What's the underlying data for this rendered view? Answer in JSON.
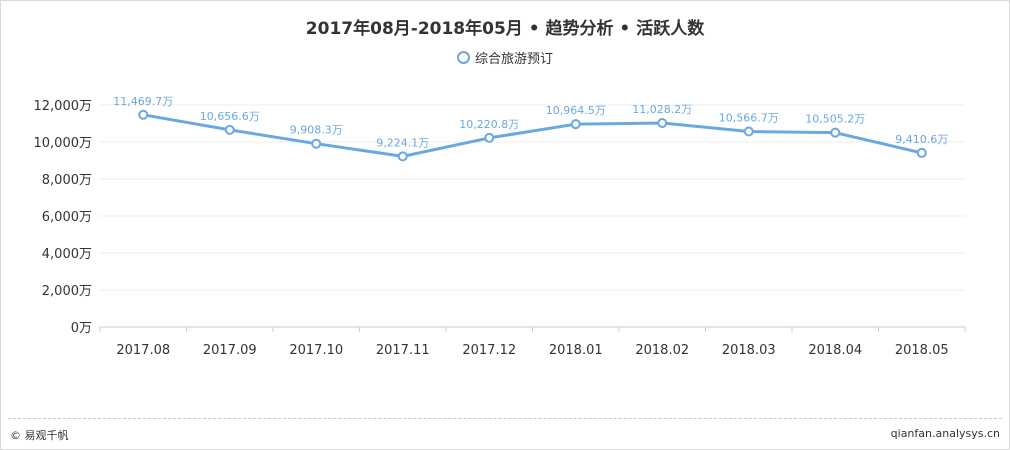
{
  "title": "2017年08月-2018年05月 • 趋势分析 • 活跃人数",
  "footer": {
    "left": "© 易观千帆",
    "right": "qianfan.analysys.cn"
  },
  "colors": {
    "series": "#6aa8e0",
    "label": "#6aa8e0",
    "axis_text": "#333333",
    "grid": "#eeeeee"
  },
  "chart_data": {
    "type": "line",
    "title": "2017年08月-2018年05月 • 趋势分析 • 活跃人数",
    "categories": [
      "2017.08",
      "2017.09",
      "2017.10",
      "2017.11",
      "2017.12",
      "2018.01",
      "2018.02",
      "2018.03",
      "2018.04",
      "2018.05"
    ],
    "series": [
      {
        "name": "综合旅游预订",
        "values": [
          11469.7,
          10656.6,
          9908.3,
          9224.1,
          10220.8,
          10964.5,
          11028.2,
          10566.7,
          10505.2,
          9410.6
        ],
        "labels": [
          "11,469.7万",
          "10,656.6万",
          "9,908.3万",
          "9,224.1万",
          "10,220.8万",
          "10,964.5万",
          "11,028.2万",
          "10,566.7万",
          "10,505.2万",
          "9,410.6万"
        ]
      }
    ],
    "y_ticks": [
      0,
      2000,
      4000,
      6000,
      8000,
      10000,
      12000
    ],
    "y_tick_labels": [
      "0万",
      "2,000万",
      "4,000万",
      "6,000万",
      "8,000万",
      "10,000万",
      "12,000万"
    ],
    "ylim": [
      0,
      12000
    ],
    "grid": true,
    "legend_position": "top-center"
  }
}
